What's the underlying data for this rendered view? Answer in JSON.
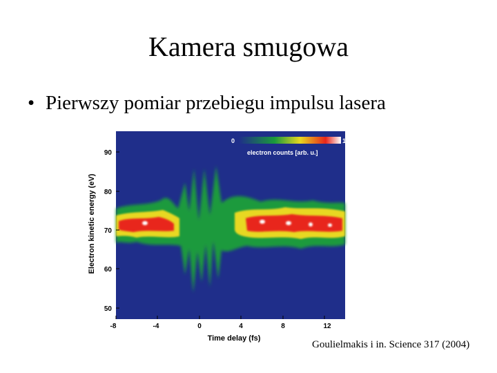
{
  "slide": {
    "title": "Kamera smugowa",
    "bullet_symbol": "•",
    "bullet_text": "Pierwszy pomiar przebiegu impulsu lasera",
    "citation": "Goulielmakis i in. Science 317 (2004)"
  },
  "figure": {
    "xlabel": "Time delay (fs)",
    "ylabel": "Electron kinetic energy (eV)",
    "x_ticks": [
      "-8",
      "-4",
      "0",
      "4",
      "8",
      "12"
    ],
    "y_ticks": [
      "90",
      "80",
      "70",
      "60",
      "50"
    ],
    "colorbar": {
      "min_label": "0",
      "max_label": "1",
      "label": "electron counts [arb. u.]"
    },
    "colors": {
      "background": "#1f2e8a",
      "low": "#1a9a3c",
      "mid": "#e8d820",
      "high": "#e8251a",
      "peak": "#ffffff"
    }
  }
}
